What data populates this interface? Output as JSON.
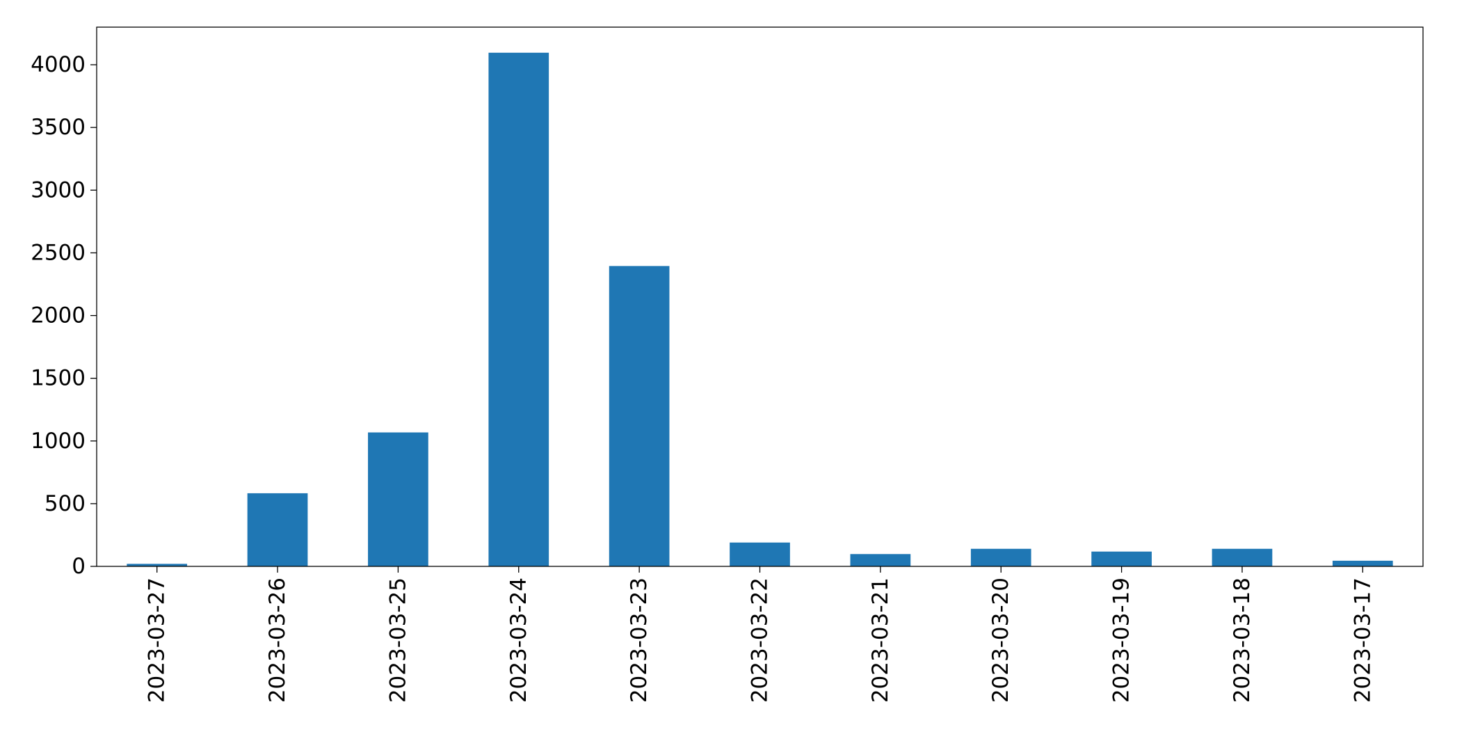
{
  "chart_data": {
    "type": "bar",
    "title": "",
    "xlabel": "",
    "ylabel": "",
    "categories": [
      "2023-03-27",
      "2023-03-26",
      "2023-03-25",
      "2023-03-24",
      "2023-03-23",
      "2023-03-22",
      "2023-03-21",
      "2023-03-20",
      "2023-03-19",
      "2023-03-18",
      "2023-03-17"
    ],
    "values": [
      20,
      583,
      1068,
      4096,
      2395,
      190,
      98,
      140,
      118,
      140,
      45
    ],
    "ylim": [
      0,
      4300
    ],
    "yticks": [
      0,
      500,
      1000,
      1500,
      2000,
      2500,
      3000,
      3500,
      4000
    ],
    "ytick_labels": [
      "0",
      "500",
      "1000",
      "1500",
      "2000",
      "2500",
      "3000",
      "3500",
      "4000"
    ],
    "grid": false,
    "legend": "none",
    "bar_color": "#1f77b4"
  }
}
